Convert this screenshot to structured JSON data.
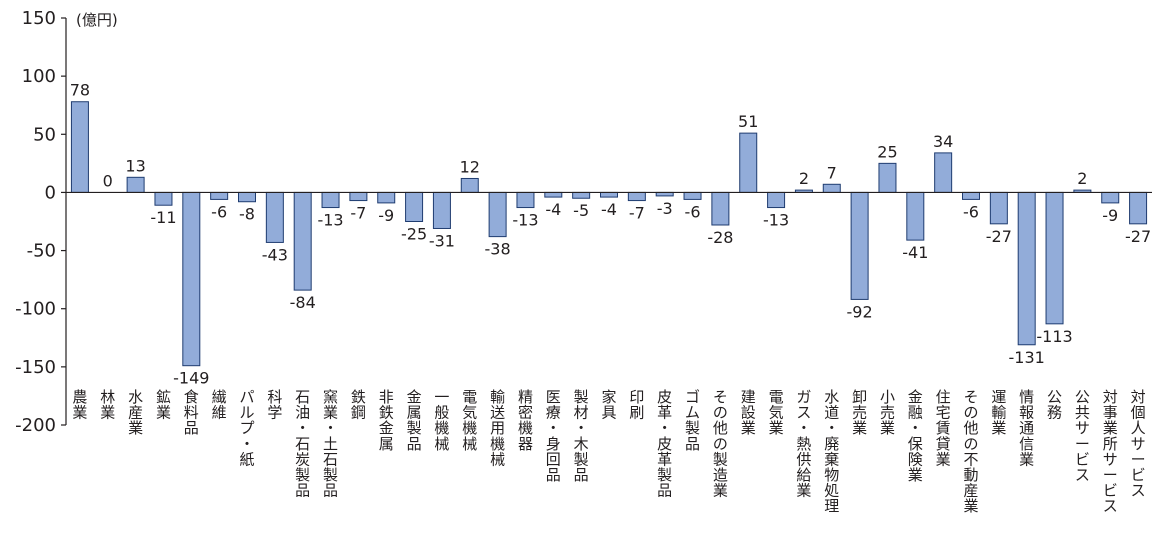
{
  "chart_data": {
    "type": "bar",
    "unit_label": "(億円)",
    "ylim": [
      -200,
      150
    ],
    "yticks": [
      "150",
      "100",
      "50",
      "0",
      "-50",
      "-100",
      "-150",
      "-200"
    ],
    "grid": false,
    "bar_color": "#92acd9",
    "bar_edge_color": "#1f3c70",
    "categories": [
      "農業",
      "林業",
      "水産業",
      "鉱業",
      "食料品",
      "繊維",
      "パルプ・紙",
      "科学",
      "石油・石炭製品",
      "窯業・土石製品",
      "鉄鋼",
      "非鉄金属",
      "金属製品",
      "一般機械",
      "電気機械",
      "輸送用機械",
      "精密機器",
      "医療・身回品",
      "製材・木製品",
      "家具",
      "印刷",
      "皮革・皮革製品",
      "ゴム製品",
      "その他の製造業",
      "建設業",
      "電気業",
      "ガス・熱供給業",
      "水道・廃棄物処理",
      "卸売業",
      "小売業",
      "金融・保険業",
      "住宅賃貸業",
      "その他の不動産業",
      "運輸業",
      "情報通信業",
      "公務",
      "公共サービス",
      "対事業所サービス",
      "対個人サービス"
    ],
    "values": [
      78,
      0,
      13,
      -11,
      -149,
      -6,
      -8,
      -43,
      -84,
      -13,
      -7,
      -9,
      -25,
      -31,
      12,
      -38,
      -13,
      -4,
      -5,
      -4,
      -7,
      -3,
      -6,
      -28,
      51,
      -13,
      2,
      7,
      -92,
      25,
      -41,
      34,
      -6,
      -27,
      -131,
      -113,
      2,
      -9,
      -27
    ],
    "value_labels": [
      "78",
      "0",
      "13",
      "-11",
      "-149",
      "-6",
      "-8",
      "-43",
      "-84",
      "-13",
      "-7",
      "-9",
      "-25",
      "-31",
      "12",
      "-38",
      "-13",
      "-4",
      "-5",
      "-4",
      "-7",
      "-3",
      "-6",
      "-28",
      "51",
      "-13",
      "2",
      "7",
      "-92",
      "25",
      "-41",
      "34",
      "-6",
      "-27",
      "-131",
      "-113",
      "2",
      "-9",
      "-27"
    ]
  }
}
